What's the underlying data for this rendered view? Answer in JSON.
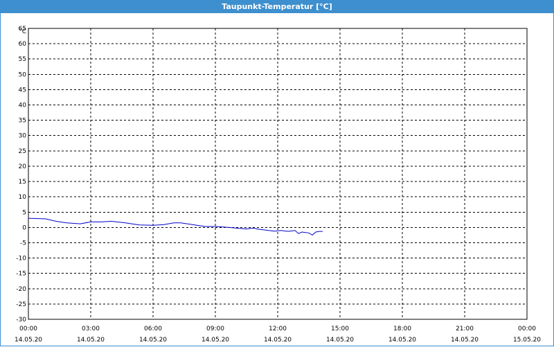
{
  "window": {
    "title": "Taupunkt-Temperatur [°C]"
  },
  "chart_data": {
    "type": "line",
    "title": "Taupunkt-Temperatur [°C]",
    "ylabel": "°C",
    "ylim": [
      -30,
      65
    ],
    "yticks": [
      65,
      60,
      55,
      50,
      45,
      40,
      35,
      30,
      25,
      20,
      15,
      10,
      5,
      0,
      -5,
      -10,
      -15,
      -20,
      -25,
      -30
    ],
    "xlim": [
      "14.05.20 00:00",
      "15.05.20 00:00"
    ],
    "xticks": [
      {
        "time": "00:00",
        "date": "14.05.20"
      },
      {
        "time": "03:00",
        "date": "14.05.20"
      },
      {
        "time": "06:00",
        "date": "14.05.20"
      },
      {
        "time": "09:00",
        "date": "14.05.20"
      },
      {
        "time": "12:00",
        "date": "14.05.20"
      },
      {
        "time": "15:00",
        "date": "14.05.20"
      },
      {
        "time": "18:00",
        "date": "14.05.20"
      },
      {
        "time": "21:00",
        "date": "14.05.20"
      },
      {
        "time": "00:00",
        "date": "15.05.20"
      }
    ],
    "grid": true,
    "line_color": "#0000cc",
    "series": [
      {
        "x": [
          "00:00",
          "00:50",
          "01:20",
          "01:50",
          "02:30",
          "03:00",
          "03:30",
          "04:00",
          "04:40",
          "05:20",
          "06:00",
          "06:30",
          "07:00",
          "07:20",
          "08:00",
          "08:30",
          "09:00",
          "09:40",
          "10:10",
          "10:30",
          "10:50",
          "11:00",
          "11:20",
          "11:50",
          "12:10",
          "12:30",
          "12:50",
          "13:00",
          "13:10",
          "13:30",
          "13:40",
          "13:50",
          "14:00",
          "14:10"
        ],
        "y": [
          3.0,
          2.8,
          2.0,
          1.5,
          1.2,
          1.8,
          1.8,
          2.0,
          1.5,
          0.8,
          0.7,
          0.9,
          1.5,
          1.5,
          0.8,
          0.3,
          0.3,
          0.0,
          -0.3,
          -0.5,
          -0.2,
          -0.5,
          -0.8,
          -1.2,
          -1.0,
          -1.3,
          -1.0,
          -2.0,
          -1.5,
          -1.8,
          -2.5,
          -1.5,
          -1.3,
          -1.3
        ]
      }
    ]
  }
}
